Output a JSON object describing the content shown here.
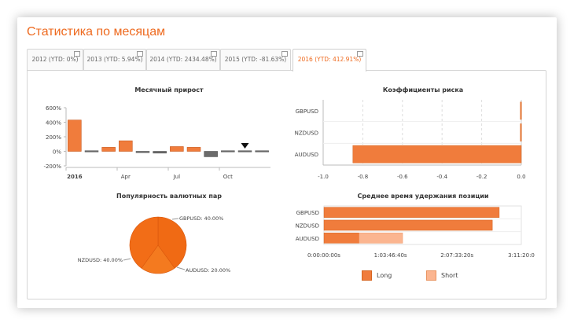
{
  "page": {
    "title": "Статистика по месяцам"
  },
  "tabs": [
    {
      "label": "2012 (YTD: 0%)"
    },
    {
      "label": "2013 (YTD: 5.94%)"
    },
    {
      "label": "2014 (YTD: 2434.48%)"
    },
    {
      "label": "2015 (YTD: -81.63%)"
    },
    {
      "label": "2016 (YTD: 412.91%)",
      "active": true
    }
  ],
  "colors": {
    "accent": "#f07c3c",
    "dark_bar": "#6b6b6b",
    "short": "#fbb590"
  },
  "chart_data": [
    {
      "id": "monthly",
      "type": "bar",
      "title": "Месячный прирост",
      "y_ticks": [
        "600%",
        "400%",
        "200%",
        "0%",
        "-200%"
      ],
      "x_ticks": [
        "2016",
        "Apr",
        "Jul",
        "Oct"
      ],
      "ylim": [
        -200,
        600
      ],
      "values": [
        430,
        -8,
        55,
        145,
        -18,
        -25,
        65,
        55,
        -75,
        -12,
        0,
        -10
      ],
      "colors": [
        "accent",
        "dark",
        "accent",
        "accent",
        "dark",
        "dark",
        "accent",
        "accent",
        "dark",
        "dark",
        "dark",
        "dark"
      ],
      "marker_month": 10
    },
    {
      "id": "risk",
      "type": "bar",
      "title": "Коэффициенты риска",
      "orientation": "horizontal",
      "categories": [
        "GBPUSD",
        "NZDUSD",
        "AUDUSD"
      ],
      "values": [
        -0.005,
        -0.005,
        -0.85
      ],
      "x_ticks": [
        "-1.0",
        "-0.8",
        "-0.6",
        "-0.4",
        "-0.2",
        "0.0"
      ],
      "xlim": [
        -1.0,
        0.0
      ],
      "grid": true
    },
    {
      "id": "popularity",
      "type": "pie",
      "title": "Популярность валютных пар",
      "slices": [
        {
          "label": "GBPUSD: 40.00%",
          "value": 40
        },
        {
          "label": "AUDUSD: 20.00%",
          "value": 20
        },
        {
          "label": "NZDUSD: 40.00%",
          "value": 40
        }
      ]
    },
    {
      "id": "hold",
      "type": "bar",
      "title": "Среднее время удержания позиции",
      "orientation": "horizontal",
      "stacked": true,
      "categories": [
        "GBPUSD",
        "NZDUSD",
        "AUDUSD"
      ],
      "x_ticks": [
        "0:00:00:00s",
        "1:03:46:40s",
        "2:07:33:20s",
        "3:11:20:0"
      ],
      "xlim_seconds": [
        0,
        286000
      ],
      "series": [
        {
          "name": "Long",
          "values_seconds": [
            254000,
            244000,
            51000
          ]
        },
        {
          "name": "Short",
          "values_seconds": [
            0,
            0,
            63000
          ]
        }
      ],
      "legend": [
        "Long",
        "Short"
      ]
    }
  ]
}
